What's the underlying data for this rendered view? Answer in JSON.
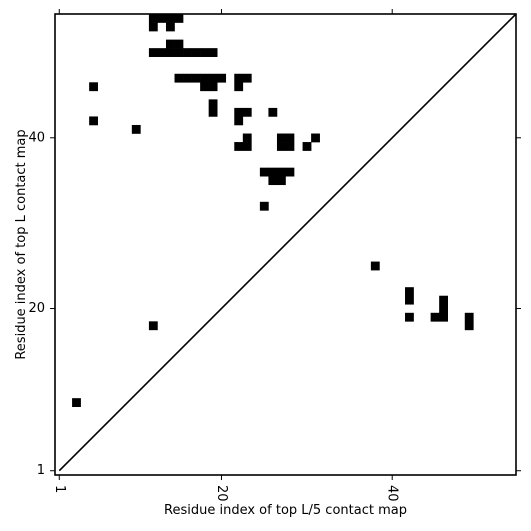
{
  "chart_data": {
    "type": "heatmap",
    "title": "",
    "xlabel": "Residue index of top L/5 contact map",
    "ylabel": "Residue index of top L contact map",
    "xlim": [
      0.5,
      54.5
    ],
    "ylim": [
      0.5,
      54.5
    ],
    "xticks": [
      1,
      20,
      40
    ],
    "yticks": [
      1,
      20,
      40
    ],
    "xtick_labels": [
      "1",
      "20",
      "40"
    ],
    "ytick_labels": [
      "1",
      "20",
      "40"
    ],
    "xtick_rotation": -90,
    "diagonal": true,
    "cell_color": "#000000",
    "background_color": "#ffffff",
    "upper_triangle_contacts": [
      [
        12,
        54
      ],
      [
        13,
        54
      ],
      [
        14,
        54
      ],
      [
        15,
        54
      ],
      [
        12,
        53
      ],
      [
        14,
        53
      ],
      [
        14,
        51
      ],
      [
        15,
        51
      ],
      [
        12,
        50
      ],
      [
        13,
        50
      ],
      [
        14,
        50
      ],
      [
        15,
        50
      ],
      [
        16,
        50
      ],
      [
        17,
        50
      ],
      [
        18,
        50
      ],
      [
        19,
        50
      ],
      [
        15,
        47
      ],
      [
        16,
        47
      ],
      [
        17,
        47
      ],
      [
        18,
        47
      ],
      [
        19,
        47
      ],
      [
        20,
        47
      ],
      [
        22,
        47
      ],
      [
        23,
        47
      ],
      [
        5,
        46
      ],
      [
        18,
        46
      ],
      [
        19,
        46
      ],
      [
        22,
        46
      ],
      [
        19,
        44
      ],
      [
        19,
        43
      ],
      [
        22,
        43
      ],
      [
        23,
        43
      ],
      [
        26,
        43
      ],
      [
        5,
        42
      ],
      [
        22,
        42
      ],
      [
        10,
        41
      ],
      [
        23,
        40
      ],
      [
        27,
        40
      ],
      [
        28,
        40
      ],
      [
        31,
        40
      ],
      [
        22,
        39
      ],
      [
        23,
        39
      ],
      [
        27,
        39
      ],
      [
        28,
        39
      ],
      [
        30,
        39
      ],
      [
        25,
        36
      ],
      [
        26,
        36
      ],
      [
        27,
        36
      ],
      [
        28,
        36
      ],
      [
        26,
        35
      ],
      [
        27,
        35
      ],
      [
        25,
        32
      ]
    ],
    "lower_triangle_contacts": [
      [
        38,
        25
      ],
      [
        42,
        22
      ],
      [
        42,
        21
      ],
      [
        46,
        21
      ],
      [
        46,
        20
      ],
      [
        42,
        19
      ],
      [
        45,
        19
      ],
      [
        46,
        19
      ],
      [
        49,
        19
      ],
      [
        12,
        18
      ],
      [
        49,
        18
      ],
      [
        3,
        9
      ]
    ]
  }
}
